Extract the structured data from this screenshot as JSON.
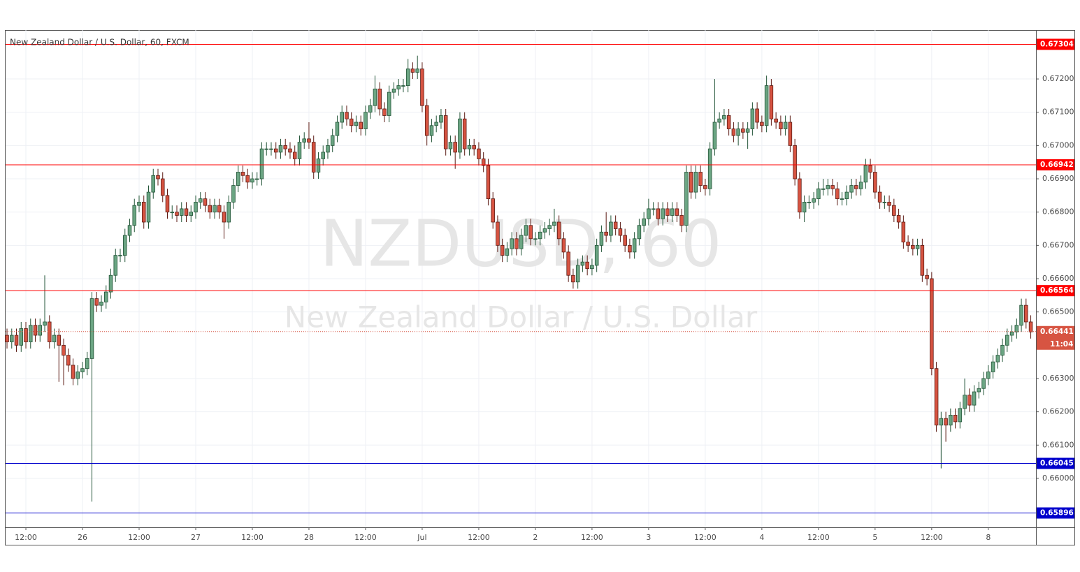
{
  "chart_data": {
    "type": "candlestick",
    "title": "New Zealand Dollar / U.S. Dollar, 60, FXCM",
    "watermark": "NZDUSD, 60",
    "watermark_subtitle": "New Zealand Dollar / U.S. Dollar",
    "up_color": "#6ba583",
    "up_border": "#225437",
    "down_color": "#d75442",
    "down_border": "#5b1a13",
    "grid": true,
    "xlim": [
      -0.3,
      218.1
    ],
    "xticks": [
      {
        "value": 4,
        "label": "12:00"
      },
      {
        "value": 16,
        "label": "26"
      },
      {
        "value": 28,
        "label": "12:00"
      },
      {
        "value": 40,
        "label": "27"
      },
      {
        "value": 52,
        "label": "12:00"
      },
      {
        "value": 64,
        "label": "28"
      },
      {
        "value": 76,
        "label": "12:00"
      },
      {
        "value": 88,
        "label": "Jul"
      },
      {
        "value": 100,
        "label": "12:00"
      },
      {
        "value": 112,
        "label": "2"
      },
      {
        "value": 124,
        "label": "12:00"
      },
      {
        "value": 136,
        "label": "3"
      },
      {
        "value": 148,
        "label": "12:00"
      },
      {
        "value": 160,
        "label": "4"
      },
      {
        "value": 172,
        "label": "12:00"
      },
      {
        "value": 184,
        "label": "5"
      },
      {
        "value": 196,
        "label": "12:00"
      },
      {
        "value": 208,
        "label": "8"
      }
    ],
    "ylim": [
      0.65853,
      0.67347
    ],
    "yticks": [
      {
        "value": 0.66,
        "label": "0.66000"
      },
      {
        "value": 0.661,
        "label": "0.66100"
      },
      {
        "value": 0.662,
        "label": "0.66200"
      },
      {
        "value": 0.663,
        "label": "0.66300"
      },
      {
        "value": 0.665,
        "label": "0.66500"
      },
      {
        "value": 0.666,
        "label": "0.66600"
      },
      {
        "value": 0.667,
        "label": "0.66700"
      },
      {
        "value": 0.668,
        "label": "0.66800"
      },
      {
        "value": 0.669,
        "label": "0.66900"
      },
      {
        "value": 0.67,
        "label": "0.67000"
      },
      {
        "value": 0.671,
        "label": "0.67100"
      },
      {
        "value": 0.672,
        "label": "0.67200"
      }
    ],
    "levels": [
      {
        "value": 0.67304,
        "label": "0.67304",
        "color": "#ff0000"
      },
      {
        "value": 0.66942,
        "label": "0.66942",
        "color": "#ff0000"
      },
      {
        "value": 0.66564,
        "label": "0.66564",
        "color": "#ff0000"
      },
      {
        "value": 0.66045,
        "label": "0.66045",
        "color": "#0000cc"
      },
      {
        "value": 0.65896,
        "label": "0.65896",
        "color": "#0000cc"
      }
    ],
    "last_price": {
      "value": 0.66441,
      "label": "0.66441",
      "color": "#d75442"
    },
    "countdown": "11:04",
    "open": [
      0.6643,
      0.6641,
      0.6643,
      0.664,
      0.6645,
      0.6641,
      0.6646,
      0.6643,
      0.6646,
      0.6647,
      0.6641,
      0.6643,
      0.664,
      0.6637,
      0.6634,
      0.663,
      0.6632,
      0.6633,
      0.6636,
      0.6654,
      0.6652,
      0.6653,
      0.6656,
      0.6661,
      0.6667,
      0.6667,
      0.6673,
      0.6676,
      0.6682,
      0.6683,
      0.6677,
      0.6686,
      0.6691,
      0.669,
      0.6685,
      0.668,
      0.668,
      0.6679,
      0.6681,
      0.6679,
      0.668,
      0.6683,
      0.6684,
      0.6682,
      0.668,
      0.6682,
      0.668,
      0.6677,
      0.6683,
      0.6688,
      0.6692,
      0.6691,
      0.6689,
      0.669,
      0.669,
      0.6699,
      0.6699,
      0.6699,
      0.6698,
      0.67,
      0.6699,
      0.6698,
      0.6696,
      0.6701,
      0.6702,
      0.6701,
      0.6692,
      0.6696,
      0.6698,
      0.67,
      0.6703,
      0.6707,
      0.671,
      0.6708,
      0.6706,
      0.6707,
      0.6705,
      0.671,
      0.6712,
      0.6717,
      0.6711,
      0.6709,
      0.6716,
      0.6717,
      0.6718,
      0.6718,
      0.6723,
      0.6722,
      0.6723,
      0.6712,
      0.6703,
      0.6706,
      0.6707,
      0.6709,
      0.6699,
      0.6701,
      0.6698,
      0.6708,
      0.6699,
      0.67,
      0.6699,
      0.6696,
      0.6694,
      0.6684,
      0.6677,
      0.667,
      0.6667,
      0.6669,
      0.6672,
      0.6669,
      0.6673,
      0.6676,
      0.6672,
      0.6672,
      0.6674,
      0.6675,
      0.6676,
      0.6677,
      0.6672,
      0.6668,
      0.6661,
      0.6659,
      0.6664,
      0.6665,
      0.6663,
      0.6664,
      0.667,
      0.6674,
      0.6673,
      0.6677,
      0.6675,
      0.6673,
      0.667,
      0.6668,
      0.6672,
      0.6676,
      0.6678,
      0.6681,
      0.6681,
      0.6678,
      0.6681,
      0.6679,
      0.6681,
      0.6679,
      0.6676,
      0.6692,
      0.6686,
      0.6692,
      0.6688,
      0.6687,
      0.6699,
      0.6707,
      0.6708,
      0.6709,
      0.6705,
      0.6703,
      0.6705,
      0.6704,
      0.6705,
      0.6711,
      0.6707,
      0.6706,
      0.6718,
      0.6708,
      0.6707,
      0.6705,
      0.6707,
      0.67,
      0.669,
      0.668,
      0.6683,
      0.6683,
      0.6684,
      0.6687,
      0.6687,
      0.6688,
      0.6687,
      0.6684,
      0.6684,
      0.6686,
      0.6688,
      0.6687,
      0.6689,
      0.6694,
      0.6692,
      0.6686,
      0.6683,
      0.6683,
      0.6682,
      0.6679,
      0.6677,
      0.6671,
      0.667,
      0.6669,
      0.667,
      0.6661,
      0.666,
      0.6633,
      0.6616,
      0.6618,
      0.6616,
      0.6619,
      0.6617,
      0.6621,
      0.6625,
      0.6622,
      0.6626,
      0.6627,
      0.663,
      0.6632,
      0.6635,
      0.6637,
      0.664,
      0.6643,
      0.6644,
      0.6646,
      0.6652,
      0.6647
    ],
    "high": [
      0.6645,
      0.6645,
      0.6645,
      0.6647,
      0.6647,
      0.6648,
      0.6648,
      0.6648,
      0.6661,
      0.6649,
      0.6645,
      0.6645,
      0.6642,
      0.6639,
      0.6636,
      0.6634,
      0.6635,
      0.6638,
      0.6656,
      0.6656,
      0.6655,
      0.6658,
      0.6663,
      0.6669,
      0.6669,
      0.6675,
      0.6678,
      0.6684,
      0.6685,
      0.6685,
      0.6688,
      0.6693,
      0.6693,
      0.6692,
      0.6687,
      0.6682,
      0.6682,
      0.6683,
      0.6683,
      0.6682,
      0.6685,
      0.6686,
      0.6686,
      0.6684,
      0.6684,
      0.6684,
      0.6682,
      0.6685,
      0.669,
      0.6694,
      0.6694,
      0.6693,
      0.6692,
      0.6692,
      0.6701,
      0.6701,
      0.6701,
      0.6701,
      0.6702,
      0.6702,
      0.6701,
      0.67,
      0.6703,
      0.6704,
      0.6707,
      0.6703,
      0.6698,
      0.67,
      0.6702,
      0.6705,
      0.6709,
      0.6712,
      0.6712,
      0.671,
      0.6709,
      0.6709,
      0.6712,
      0.6714,
      0.6721,
      0.6719,
      0.6713,
      0.6718,
      0.6719,
      0.672,
      0.672,
      0.6726,
      0.6725,
      0.6727,
      0.6725,
      0.6714,
      0.6708,
      0.6709,
      0.6711,
      0.6711,
      0.6703,
      0.6703,
      0.671,
      0.671,
      0.6702,
      0.6702,
      0.6701,
      0.6698,
      0.6696,
      0.6686,
      0.6679,
      0.6672,
      0.6671,
      0.6674,
      0.6674,
      0.6675,
      0.6678,
      0.6678,
      0.6674,
      0.6676,
      0.6677,
      0.6678,
      0.6681,
      0.6679,
      0.6674,
      0.667,
      0.6663,
      0.6666,
      0.6667,
      0.6667,
      0.6666,
      0.6672,
      0.6676,
      0.668,
      0.6679,
      0.6679,
      0.6677,
      0.6675,
      0.6672,
      0.6674,
      0.6678,
      0.668,
      0.6684,
      0.6683,
      0.6683,
      0.6683,
      0.6683,
      0.6683,
      0.6683,
      0.6681,
      0.6694,
      0.6694,
      0.6694,
      0.6694,
      0.669,
      0.6701,
      0.672,
      0.671,
      0.6711,
      0.6711,
      0.6707,
      0.6707,
      0.6707,
      0.6707,
      0.6713,
      0.6713,
      0.6709,
      0.6721,
      0.672,
      0.671,
      0.6709,
      0.6709,
      0.6709,
      0.6702,
      0.6692,
      0.6685,
      0.6685,
      0.6686,
      0.6689,
      0.669,
      0.669,
      0.669,
      0.6689,
      0.6686,
      0.6688,
      0.669,
      0.669,
      0.6691,
      0.6696,
      0.6696,
      0.6694,
      0.6688,
      0.6685,
      0.6685,
      0.6684,
      0.6681,
      0.6679,
      0.6673,
      0.6672,
      0.6672,
      0.6672,
      0.6663,
      0.6662,
      0.6635,
      0.662,
      0.662,
      0.6621,
      0.6621,
      0.6623,
      0.663,
      0.6627,
      0.6628,
      0.6629,
      0.6632,
      0.6634,
      0.6637,
      0.6639,
      0.6642,
      0.6645,
      0.6646,
      0.6648,
      0.6654,
      0.6654,
      0.6649
    ],
    "low": [
      0.6639,
      0.6639,
      0.6638,
      0.6638,
      0.6639,
      0.6639,
      0.6641,
      0.6641,
      0.6644,
      0.6639,
      0.6639,
      0.6629,
      0.6628,
      0.6632,
      0.6628,
      0.6628,
      0.663,
      0.6631,
      0.6593,
      0.665,
      0.665,
      0.6651,
      0.6654,
      0.6659,
      0.6665,
      0.6665,
      0.6671,
      0.6674,
      0.668,
      0.6675,
      0.6675,
      0.6684,
      0.6688,
      0.6683,
      0.6678,
      0.6678,
      0.6677,
      0.6677,
      0.6677,
      0.6677,
      0.6678,
      0.6681,
      0.668,
      0.6678,
      0.6678,
      0.6678,
      0.6672,
      0.6675,
      0.6681,
      0.6686,
      0.6689,
      0.6687,
      0.6687,
      0.6688,
      0.6688,
      0.6697,
      0.6697,
      0.6696,
      0.6696,
      0.6697,
      0.6696,
      0.6694,
      0.6694,
      0.6699,
      0.6699,
      0.669,
      0.669,
      0.6694,
      0.6696,
      0.6698,
      0.6701,
      0.6705,
      0.6706,
      0.6704,
      0.6704,
      0.6703,
      0.6703,
      0.6708,
      0.671,
      0.6709,
      0.6707,
      0.6707,
      0.6714,
      0.6715,
      0.6716,
      0.6716,
      0.672,
      0.672,
      0.671,
      0.67,
      0.6701,
      0.6704,
      0.6705,
      0.6697,
      0.6697,
      0.6693,
      0.6696,
      0.6697,
      0.6697,
      0.6697,
      0.6694,
      0.6692,
      0.6682,
      0.6675,
      0.6668,
      0.6665,
      0.6665,
      0.6667,
      0.6667,
      0.6667,
      0.6671,
      0.667,
      0.667,
      0.667,
      0.6672,
      0.6673,
      0.6674,
      0.667,
      0.6666,
      0.6659,
      0.6657,
      0.6657,
      0.6662,
      0.6661,
      0.6661,
      0.6662,
      0.6668,
      0.6671,
      0.6671,
      0.6673,
      0.6671,
      0.6668,
      0.6666,
      0.6666,
      0.667,
      0.6674,
      0.6676,
      0.6679,
      0.6676,
      0.6676,
      0.6677,
      0.6677,
      0.6677,
      0.6674,
      0.6674,
      0.6684,
      0.6684,
      0.6686,
      0.6685,
      0.6685,
      0.6697,
      0.6705,
      0.6706,
      0.6703,
      0.6701,
      0.67,
      0.6702,
      0.6699,
      0.6703,
      0.6705,
      0.6704,
      0.6704,
      0.6706,
      0.6705,
      0.6703,
      0.6703,
      0.6698,
      0.6688,
      0.6678,
      0.6677,
      0.6681,
      0.6681,
      0.6682,
      0.6685,
      0.6685,
      0.6685,
      0.6682,
      0.6682,
      0.6682,
      0.6684,
      0.6685,
      0.6685,
      0.6687,
      0.669,
      0.6684,
      0.6681,
      0.6681,
      0.668,
      0.6677,
      0.6675,
      0.6669,
      0.6668,
      0.6667,
      0.6667,
      0.6659,
      0.6658,
      0.6631,
      0.6614,
      0.6603,
      0.6611,
      0.6614,
      0.6615,
      0.6615,
      0.6619,
      0.662,
      0.662,
      0.6624,
      0.6625,
      0.6628,
      0.663,
      0.6633,
      0.6635,
      0.6638,
      0.6641,
      0.6642,
      0.6644,
      0.6645,
      0.6642
    ],
    "close": [
      0.6641,
      0.6643,
      0.664,
      0.6645,
      0.6641,
      0.6646,
      0.6643,
      0.6646,
      0.6647,
      0.6641,
      0.6643,
      0.664,
      0.6637,
      0.6634,
      0.663,
      0.6632,
      0.6633,
      0.6636,
      0.6654,
      0.6652,
      0.6653,
      0.6656,
      0.6661,
      0.6667,
      0.6667,
      0.6673,
      0.6676,
      0.6682,
      0.6683,
      0.6677,
      0.6686,
      0.6691,
      0.669,
      0.6685,
      0.668,
      0.668,
      0.6679,
      0.6681,
      0.6679,
      0.668,
      0.6683,
      0.6684,
      0.6682,
      0.668,
      0.6682,
      0.668,
      0.6677,
      0.6683,
      0.6688,
      0.6692,
      0.6691,
      0.6689,
      0.669,
      0.669,
      0.6699,
      0.6699,
      0.6699,
      0.6698,
      0.67,
      0.6699,
      0.6698,
      0.6696,
      0.6701,
      0.6702,
      0.6701,
      0.6692,
      0.6696,
      0.6698,
      0.67,
      0.6703,
      0.6707,
      0.671,
      0.6708,
      0.6706,
      0.6707,
      0.6705,
      0.671,
      0.6712,
      0.6717,
      0.6711,
      0.6709,
      0.6716,
      0.6717,
      0.6718,
      0.6718,
      0.6723,
      0.6722,
      0.6723,
      0.6712,
      0.6703,
      0.6706,
      0.6707,
      0.6709,
      0.6699,
      0.6701,
      0.6698,
      0.6708,
      0.6699,
      0.67,
      0.6699,
      0.6696,
      0.6694,
      0.6684,
      0.6677,
      0.667,
      0.6667,
      0.6669,
      0.6672,
      0.6669,
      0.6673,
      0.6676,
      0.6672,
      0.6672,
      0.6674,
      0.6675,
      0.6676,
      0.6677,
      0.6672,
      0.6668,
      0.6661,
      0.6659,
      0.6664,
      0.6665,
      0.6663,
      0.6664,
      0.667,
      0.6674,
      0.6673,
      0.6677,
      0.6675,
      0.6673,
      0.667,
      0.6668,
      0.6672,
      0.6676,
      0.6678,
      0.6681,
      0.6681,
      0.6678,
      0.6681,
      0.6679,
      0.6681,
      0.6679,
      0.6676,
      0.6692,
      0.6686,
      0.6692,
      0.6688,
      0.6687,
      0.6699,
      0.6707,
      0.6708,
      0.6709,
      0.6705,
      0.6703,
      0.6705,
      0.6704,
      0.6705,
      0.6711,
      0.6707,
      0.6706,
      0.6718,
      0.6708,
      0.6707,
      0.6705,
      0.6707,
      0.67,
      0.669,
      0.668,
      0.6683,
      0.6683,
      0.6684,
      0.6687,
      0.6687,
      0.6688,
      0.6687,
      0.6684,
      0.6684,
      0.6686,
      0.6688,
      0.6687,
      0.6689,
      0.6694,
      0.6692,
      0.6686,
      0.6683,
      0.6683,
      0.6682,
      0.6679,
      0.6677,
      0.6671,
      0.667,
      0.6669,
      0.667,
      0.6661,
      0.666,
      0.6633,
      0.6616,
      0.6618,
      0.6616,
      0.6619,
      0.6617,
      0.6621,
      0.6625,
      0.6622,
      0.6626,
      0.6627,
      0.663,
      0.6632,
      0.6635,
      0.6637,
      0.664,
      0.6643,
      0.6644,
      0.6646,
      0.6652,
      0.6647,
      0.6644
    ]
  }
}
